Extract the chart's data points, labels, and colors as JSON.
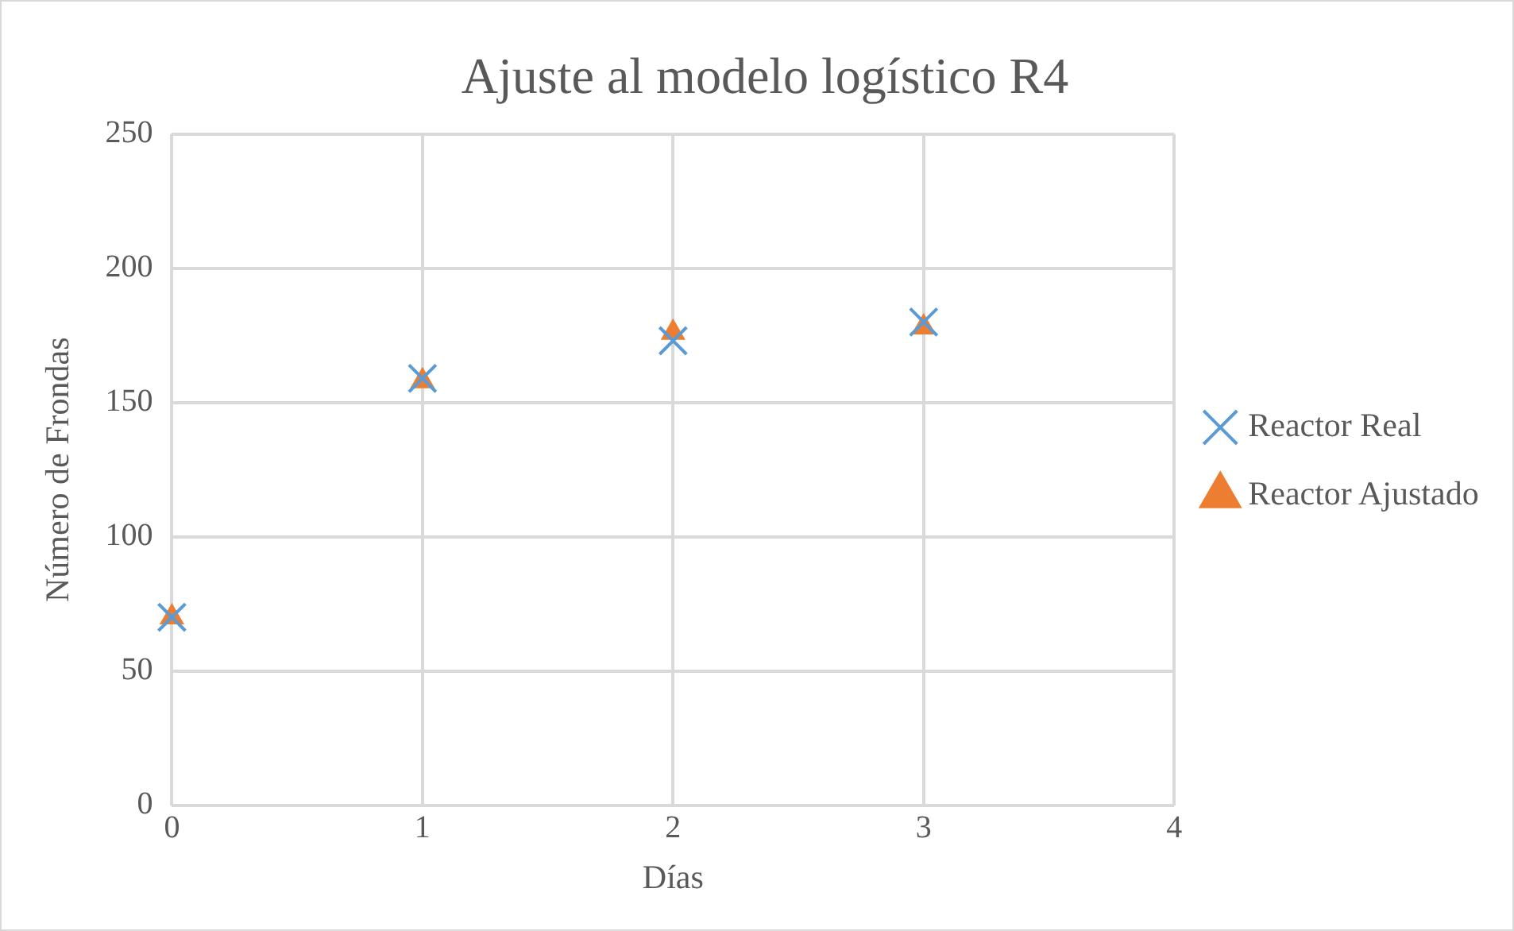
{
  "chart_data": {
    "type": "scatter",
    "title": "Ajuste al modelo logístico R4",
    "xlabel": "Días",
    "ylabel": "Número de Frondas",
    "x": [
      0,
      1,
      2,
      3
    ],
    "series": [
      {
        "name": "Reactor Real",
        "color": "#5b9bd5",
        "marker": "cross",
        "values": [
          70,
          159,
          173,
          180
        ]
      },
      {
        "name": "Reactor Ajustado",
        "color": "#ed7d31",
        "marker": "triangle",
        "values": [
          70,
          158,
          176,
          178
        ]
      }
    ],
    "xlim": [
      0,
      4
    ],
    "xticks": [
      0,
      1,
      2,
      3,
      4
    ],
    "ylim": [
      0,
      250
    ],
    "yticks": [
      0,
      50,
      100,
      150,
      200,
      250
    ],
    "grid": true,
    "legend": "right"
  }
}
